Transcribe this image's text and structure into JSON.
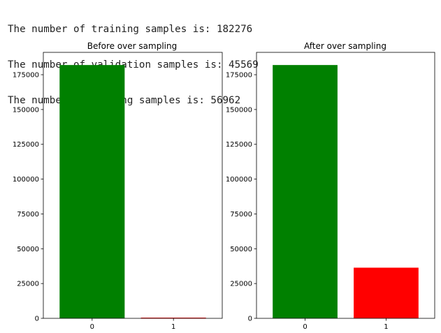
{
  "output_lines": [
    "The number of training samples is: 182276",
    "The number of validation samples is: 45569",
    "The number of testing samples is: 56962"
  ],
  "chart_data": [
    {
      "type": "bar",
      "title": "Before over sampling",
      "categories": [
        "0",
        "1"
      ],
      "values": [
        181961,
        315
      ],
      "colors": [
        "#008000",
        "#ff0000"
      ],
      "ylim": [
        0,
        191059
      ],
      "yticks": [
        0,
        25000,
        50000,
        75000,
        100000,
        125000,
        150000,
        175000
      ],
      "xlabel": "",
      "ylabel": ""
    },
    {
      "type": "bar",
      "title": "After over sampling",
      "categories": [
        "0",
        "1"
      ],
      "values": [
        181961,
        36392
      ],
      "colors": [
        "#008000",
        "#ff0000"
      ],
      "ylim": [
        0,
        191059
      ],
      "yticks": [
        0,
        25000,
        50000,
        75000,
        100000,
        125000,
        150000,
        175000
      ],
      "xlabel": "",
      "ylabel": ""
    }
  ]
}
